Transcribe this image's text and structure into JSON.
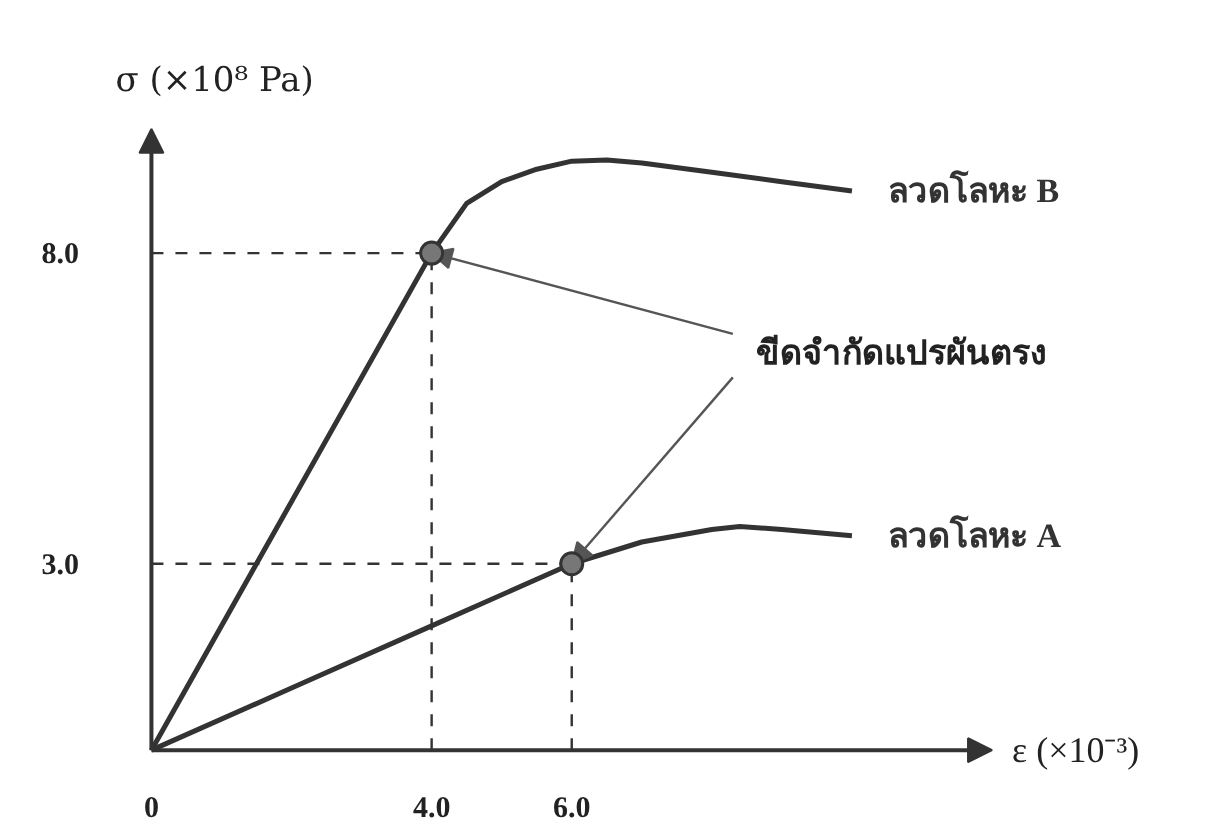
{
  "chart_data": {
    "type": "line",
    "xlabel": "ε (×10⁻³)",
    "ylabel": "σ (×10⁸ Pa)",
    "xlim": [
      0,
      12
    ],
    "ylim": [
      0,
      10
    ],
    "xticks": [
      {
        "value": 0,
        "label": "0"
      },
      {
        "value": 4,
        "label": "4.0"
      },
      {
        "value": 6,
        "label": "6.0"
      }
    ],
    "yticks": [
      {
        "value": 3,
        "label": "3.0"
      },
      {
        "value": 8,
        "label": "8.0"
      }
    ],
    "grid": false,
    "legend": false,
    "marker": "none",
    "line_style": "solid",
    "series": [
      {
        "name": "ลวดโลหะ B",
        "color": "#333333",
        "x": [
          0,
          4,
          4.5,
          5,
          5.5,
          6,
          6.5,
          7,
          8,
          9,
          10
        ],
        "values": [
          0,
          8,
          8.8,
          9.15,
          9.35,
          9.48,
          9.5,
          9.45,
          9.3,
          9.15,
          9.0
        ]
      },
      {
        "name": "ลวดโลหะ A",
        "color": "#333333",
        "x": [
          0,
          2,
          4,
          6,
          7,
          8,
          8.4,
          9,
          10
        ],
        "values": [
          0,
          1.0,
          2.0,
          3.0,
          3.35,
          3.55,
          3.6,
          3.55,
          3.45
        ]
      },
      {
        "type": "scatter",
        "marker": "circle",
        "color": "#777777",
        "x": [
          4,
          6
        ],
        "values": [
          8,
          3
        ]
      }
    ],
    "ref_lines": [
      {
        "axis": "x",
        "value": 4,
        "line_style": "dashed"
      },
      {
        "axis": "x",
        "value": 6,
        "line_style": "dashed"
      },
      {
        "axis": "y",
        "value": 8,
        "line_style": "dashed"
      },
      {
        "axis": "y",
        "value": 3,
        "line_style": "dashed"
      }
    ],
    "annotations": [
      {
        "text": "ขีดจำกัดแปรผันตรง",
        "x": 4,
        "y": 8
      }
    ]
  }
}
